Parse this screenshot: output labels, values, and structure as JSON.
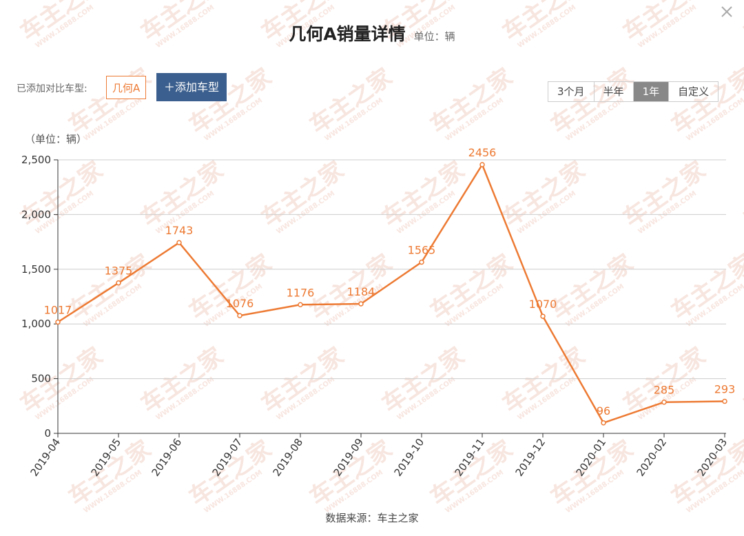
{
  "header": {
    "title": "几何A销量详情",
    "unit": "单位：辆"
  },
  "compare": {
    "label": "已添加对比车型:",
    "models": [
      "几何A"
    ],
    "add_button": "＋添加车型"
  },
  "range_buttons": [
    {
      "label": "3个月",
      "active": false
    },
    {
      "label": "半年",
      "active": false
    },
    {
      "label": "1年",
      "active": true
    },
    {
      "label": "自定义",
      "active": false
    }
  ],
  "source": "数据来源：车主之家",
  "watermark": {
    "text": "车主之家",
    "url": "WWW.16888.COM",
    "color": "#f2d0c6"
  },
  "colors": {
    "series": "#ed7a33",
    "grid": "#cccccc",
    "axis": "#333333",
    "button_blue": "#3b5f8e",
    "active_range": "#888888"
  },
  "chart_data": {
    "type": "line",
    "ylabel": "（单位：辆）",
    "ylim": [
      0,
      2500
    ],
    "yticks": [
      0,
      500,
      1000,
      1500,
      2000,
      2500
    ],
    "ytick_labels": [
      "0",
      "500",
      "1,000",
      "1,500",
      "2,000",
      "2,500"
    ],
    "x": [
      "2019-04",
      "2019-05",
      "2019-06",
      "2019-07",
      "2019-08",
      "2019-09",
      "2019-10",
      "2019-11",
      "2019-12",
      "2020-01",
      "2020-02",
      "2020-03"
    ],
    "series": [
      {
        "name": "几何A",
        "values": [
          1017,
          1375,
          1743,
          1076,
          1176,
          1184,
          1565,
          2456,
          1070,
          96,
          285,
          293
        ]
      }
    ],
    "data_labels": true,
    "grid": true
  }
}
